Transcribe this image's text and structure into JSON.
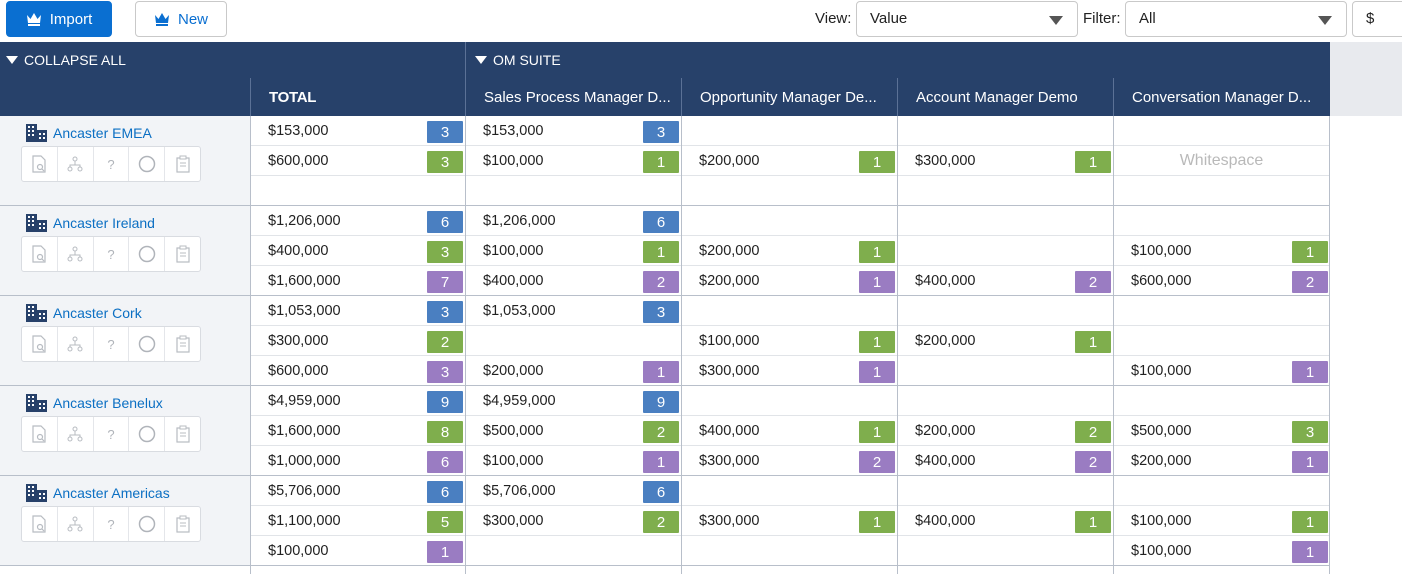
{
  "toolbar": {
    "import_label": "Import",
    "new_label": "New",
    "view_label": "View:",
    "view_value": "Value",
    "filter_label": "Filter:",
    "filter_value": "All",
    "currency_value": "$"
  },
  "header": {
    "collapse_all": "COLLAPSE ALL",
    "suite": "OM SUITE",
    "total": "TOTAL",
    "columns": [
      "Sales Process Manager D...",
      "Opportunity Manager De...",
      "Account Manager Demo",
      "Conversation Manager D..."
    ]
  },
  "whitespace_label": "Whitespace",
  "tools": [
    "doc-search-icon",
    "hierarchy-icon",
    "question-icon",
    "circle-icon",
    "clipboard-icon"
  ],
  "tool_glyphs": [
    "?"
  ],
  "accounts": [
    {
      "name": "Ancaster EMEA",
      "rows": [
        {
          "total": "$153,000",
          "total_badge": "3",
          "color": "blue",
          "cells": [
            {
              "v": "$153,000",
              "b": "3"
            },
            null,
            null,
            null
          ]
        },
        {
          "total": "$600,000",
          "total_badge": "3",
          "color": "green",
          "cells": [
            {
              "v": "$100,000",
              "b": "1"
            },
            {
              "v": "$200,000",
              "b": "1"
            },
            {
              "v": "$300,000",
              "b": "1"
            },
            null
          ]
        },
        {
          "total": "",
          "total_badge": "",
          "color": "purple",
          "cells": [
            null,
            null,
            null,
            null
          ]
        }
      ]
    },
    {
      "name": "Ancaster Ireland",
      "rows": [
        {
          "total": "$1,206,000",
          "total_badge": "6",
          "color": "blue",
          "cells": [
            {
              "v": "$1,206,000",
              "b": "6"
            },
            null,
            null,
            null
          ]
        },
        {
          "total": "$400,000",
          "total_badge": "3",
          "color": "green",
          "cells": [
            {
              "v": "$100,000",
              "b": "1"
            },
            {
              "v": "$200,000",
              "b": "1"
            },
            null,
            {
              "v": "$100,000",
              "b": "1"
            }
          ]
        },
        {
          "total": "$1,600,000",
          "total_badge": "7",
          "color": "purple",
          "cells": [
            {
              "v": "$400,000",
              "b": "2"
            },
            {
              "v": "$200,000",
              "b": "1"
            },
            {
              "v": "$400,000",
              "b": "2"
            },
            {
              "v": "$600,000",
              "b": "2"
            }
          ]
        }
      ]
    },
    {
      "name": "Ancaster Cork",
      "rows": [
        {
          "total": "$1,053,000",
          "total_badge": "3",
          "color": "blue",
          "cells": [
            {
              "v": "$1,053,000",
              "b": "3"
            },
            null,
            null,
            null
          ]
        },
        {
          "total": "$300,000",
          "total_badge": "2",
          "color": "green",
          "cells": [
            null,
            {
              "v": "$100,000",
              "b": "1"
            },
            {
              "v": "$200,000",
              "b": "1"
            },
            null
          ]
        },
        {
          "total": "$600,000",
          "total_badge": "3",
          "color": "purple",
          "cells": [
            {
              "v": "$200,000",
              "b": "1"
            },
            {
              "v": "$300,000",
              "b": "1"
            },
            null,
            {
              "v": "$100,000",
              "b": "1"
            }
          ]
        }
      ]
    },
    {
      "name": "Ancaster Benelux",
      "rows": [
        {
          "total": "$4,959,000",
          "total_badge": "9",
          "color": "blue",
          "cells": [
            {
              "v": "$4,959,000",
              "b": "9"
            },
            null,
            null,
            null
          ]
        },
        {
          "total": "$1,600,000",
          "total_badge": "8",
          "color": "green",
          "cells": [
            {
              "v": "$500,000",
              "b": "2"
            },
            {
              "v": "$400,000",
              "b": "1"
            },
            {
              "v": "$200,000",
              "b": "2"
            },
            {
              "v": "$500,000",
              "b": "3"
            }
          ]
        },
        {
          "total": "$1,000,000",
          "total_badge": "6",
          "color": "purple",
          "cells": [
            {
              "v": "$100,000",
              "b": "1"
            },
            {
              "v": "$300,000",
              "b": "2"
            },
            {
              "v": "$400,000",
              "b": "2"
            },
            {
              "v": "$200,000",
              "b": "1"
            }
          ]
        }
      ]
    },
    {
      "name": "Ancaster Americas",
      "rows": [
        {
          "total": "$5,706,000",
          "total_badge": "6",
          "color": "blue",
          "cells": [
            {
              "v": "$5,706,000",
              "b": "6"
            },
            null,
            null,
            null
          ]
        },
        {
          "total": "$1,100,000",
          "total_badge": "5",
          "color": "green",
          "cells": [
            {
              "v": "$300,000",
              "b": "2"
            },
            {
              "v": "$300,000",
              "b": "1"
            },
            {
              "v": "$400,000",
              "b": "1"
            },
            {
              "v": "$100,000",
              "b": "1"
            }
          ]
        },
        {
          "total": "$100,000",
          "total_badge": "1",
          "color": "purple",
          "cells": [
            null,
            null,
            null,
            {
              "v": "$100,000",
              "b": "1"
            }
          ]
        }
      ]
    }
  ],
  "colors": {
    "header_bg": "#27416a",
    "primary": "#0a6fd1",
    "badge_blue": "#4a7fc1",
    "badge_green": "#7fae4d",
    "badge_purple": "#9a7cc2",
    "link": "#0b6fc3"
  }
}
